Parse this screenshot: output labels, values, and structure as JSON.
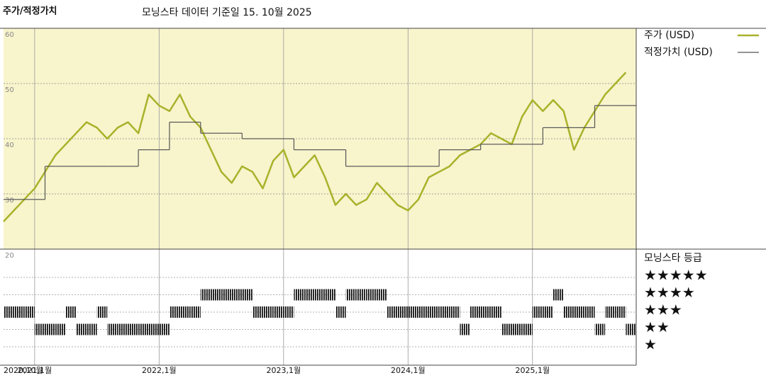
{
  "chart_data": [
    {
      "type": "line",
      "title": "주가/적정가치",
      "subtitle": "모닝스타 데이터 기준일 15. 10월 2025",
      "x": [
        "2020-10",
        "2020-11",
        "2020-12",
        "2021-01",
        "2021-02",
        "2021-03",
        "2021-04",
        "2021-05",
        "2021-06",
        "2021-07",
        "2021-08",
        "2021-09",
        "2021-10",
        "2021-11",
        "2021-12",
        "2022-01",
        "2022-02",
        "2022-03",
        "2022-04",
        "2022-05",
        "2022-06",
        "2022-07",
        "2022-08",
        "2022-09",
        "2022-10",
        "2022-11",
        "2022-12",
        "2023-01",
        "2023-02",
        "2023-03",
        "2023-04",
        "2023-05",
        "2023-06",
        "2023-07",
        "2023-08",
        "2023-09",
        "2023-10",
        "2023-11",
        "2023-12",
        "2024-01",
        "2024-02",
        "2024-03",
        "2024-04",
        "2024-05",
        "2024-06",
        "2024-07",
        "2024-08",
        "2024-09",
        "2024-10",
        "2024-11",
        "2024-12",
        "2025-01",
        "2025-02",
        "2025-03",
        "2025-04",
        "2025-05",
        "2025-06",
        "2025-07",
        "2025-08",
        "2025-09",
        "2025-10"
      ],
      "series": [
        {
          "name": "주가 (USD)",
          "color": "#a8b22a",
          "values": [
            25,
            27,
            29,
            31,
            34,
            37,
            39,
            41,
            43,
            42,
            40,
            42,
            43,
            41,
            48,
            46,
            45,
            48,
            44,
            42,
            38,
            34,
            32,
            35,
            34,
            31,
            36,
            38,
            33,
            35,
            37,
            33,
            28,
            30,
            28,
            29,
            32,
            30,
            28,
            27,
            29,
            33,
            34,
            35,
            37,
            38,
            39,
            41,
            40,
            39,
            44,
            47,
            45,
            47,
            45,
            38,
            42,
            45,
            48,
            50,
            52
          ]
        },
        {
          "name": "적정가치 (USD)",
          "color": "#555555",
          "step": true,
          "values": [
            29,
            29,
            29,
            29,
            35,
            35,
            35,
            35,
            35,
            35,
            35,
            35,
            35,
            38,
            38,
            38,
            43,
            43,
            43,
            41,
            41,
            41,
            41,
            40,
            40,
            40,
            40,
            40,
            38,
            38,
            38,
            38,
            38,
            35,
            35,
            35,
            35,
            35,
            35,
            35,
            35,
            35,
            38,
            38,
            38,
            38,
            39,
            39,
            39,
            39,
            39,
            39,
            42,
            42,
            42,
            42,
            42,
            46,
            46,
            46,
            46
          ]
        }
      ],
      "xlim": [
        "2020-10",
        "2025-11"
      ],
      "xticks": [
        {
          "value": "2020-10",
          "label": "2020,10월"
        },
        {
          "value": "2021-01",
          "label": "2021,1월"
        },
        {
          "value": "2022-01",
          "label": "2022,1월"
        },
        {
          "value": "2023-01",
          "label": "2023,1월"
        },
        {
          "value": "2024-01",
          "label": "2024,1월"
        },
        {
          "value": "2025-01",
          "label": "2025,1월"
        }
      ],
      "ylim": [
        20,
        60
      ],
      "yticks": [
        20,
        30,
        40,
        50,
        60
      ],
      "grid": true,
      "background": "#f8f4cc"
    },
    {
      "type": "rating",
      "title": "모닝스타 등급",
      "values": [
        3,
        3,
        3,
        2,
        2,
        2,
        3,
        2,
        2,
        3,
        2,
        2,
        2,
        2,
        2,
        2,
        3,
        3,
        3,
        4,
        4,
        4,
        4,
        4,
        3,
        3,
        3,
        3,
        4,
        4,
        4,
        4,
        3,
        4,
        4,
        4,
        4,
        3,
        3,
        3,
        3,
        3,
        3,
        3,
        2,
        3,
        3,
        3,
        2,
        2,
        2,
        3,
        3,
        4,
        3,
        3,
        3,
        2,
        3,
        3,
        2
      ],
      "levels": [
        {
          "value": 5,
          "label": "★★★★★"
        },
        {
          "value": 4,
          "label": "★★★★"
        },
        {
          "value": 3,
          "label": "★★★"
        },
        {
          "value": 2,
          "label": "★★"
        },
        {
          "value": 1,
          "label": "★"
        }
      ],
      "color": "#111111"
    }
  ]
}
